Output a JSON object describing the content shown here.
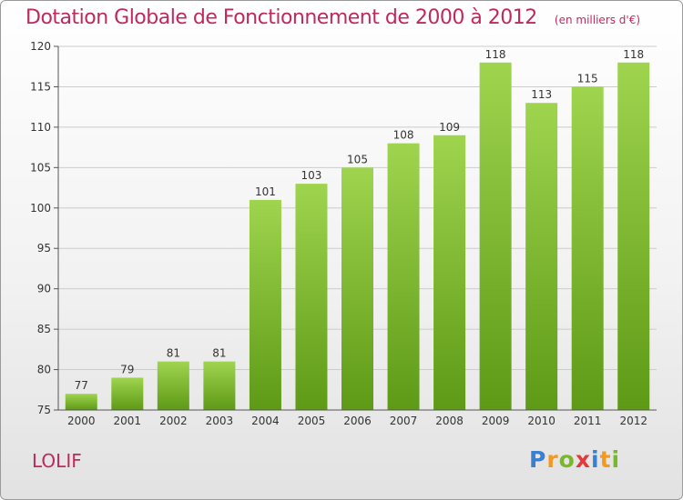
{
  "chart_data": {
    "type": "bar",
    "title": "Dotation Globale de Fonctionnement de 2000 à 2012",
    "unit_note": "(en milliers d'€)",
    "categories": [
      "2000",
      "2001",
      "2002",
      "2003",
      "2004",
      "2005",
      "2006",
      "2007",
      "2008",
      "2009",
      "2010",
      "2011",
      "2012"
    ],
    "values": [
      77,
      79,
      81,
      81,
      101,
      103,
      105,
      108,
      109,
      118,
      113,
      115,
      118
    ],
    "data_labels": [
      "77",
      "79",
      "81",
      "81",
      "101",
      "103",
      "105",
      "108",
      "109",
      "118",
      "113",
      "115",
      "118"
    ],
    "ylim": [
      75,
      120
    ],
    "yticks": [
      75,
      80,
      85,
      90,
      95,
      100,
      105,
      110,
      115,
      120
    ],
    "ytick_labels": [
      "75",
      "80",
      "85",
      "90",
      "95",
      "100",
      "105",
      "110",
      "115",
      "120"
    ],
    "grid": true,
    "bar_color": "#8cc63f",
    "xlabel": "",
    "ylabel": ""
  },
  "place_name": "LOLIF",
  "logo": {
    "letters": [
      "P",
      "r",
      "o",
      "x",
      "i",
      "t",
      "i"
    ],
    "colors": [
      "#3a7fd0",
      "#f39a1e",
      "#79b829",
      "#e23a3a",
      "#3a7fd0",
      "#f39a1e",
      "#79b829"
    ]
  },
  "colors": {
    "accent": "#c0285e",
    "grid": "#cccccc"
  }
}
